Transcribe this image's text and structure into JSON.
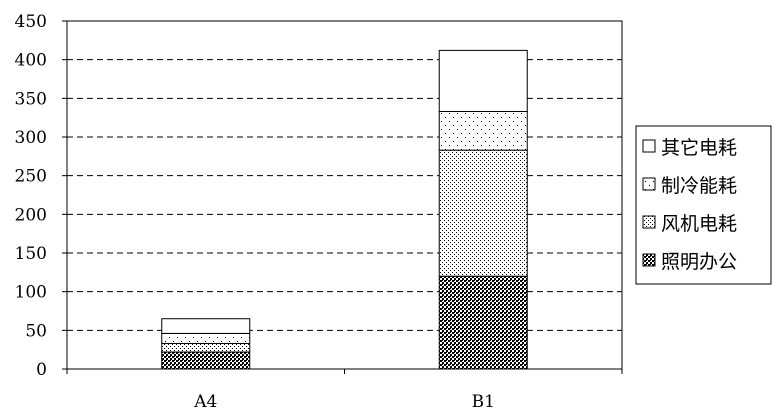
{
  "chart_data": {
    "type": "bar",
    "stacked": true,
    "categories": [
      "A4",
      "B1"
    ],
    "series": [
      {
        "name": "照明办公",
        "pattern": "dense-dots",
        "values": [
          22,
          120
        ]
      },
      {
        "name": "风机电耗",
        "pattern": "light-dots",
        "values": [
          11,
          163
        ]
      },
      {
        "name": "制冷能耗",
        "pattern": "sparse-dots",
        "values": [
          13,
          50
        ]
      },
      {
        "name": "其它电耗",
        "pattern": "blank",
        "values": [
          19,
          79
        ]
      }
    ],
    "ylim": [
      0,
      450
    ],
    "yticks": [
      0,
      50,
      100,
      150,
      200,
      250,
      300,
      350,
      400,
      450
    ],
    "grid": true,
    "legend_position": "right",
    "legend_order": [
      "其它电耗",
      "制冷能耗",
      "风机电耗",
      "照明办公"
    ],
    "colors": {
      "bar_stroke": "#000000",
      "grid": "#000000",
      "fill": "#ffffff"
    }
  }
}
